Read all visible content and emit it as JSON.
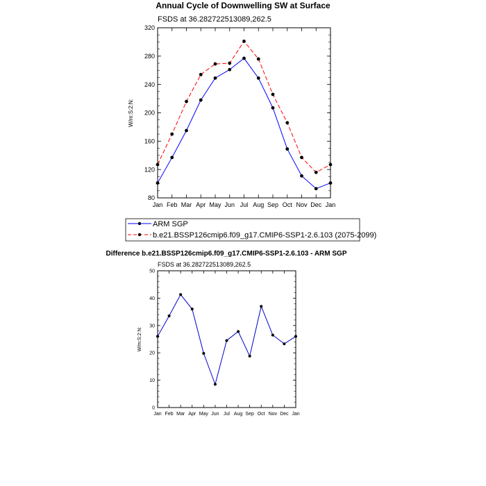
{
  "months": [
    "Jan",
    "Feb",
    "Mar",
    "Apr",
    "May",
    "Jun",
    "Jul",
    "Aug",
    "Sep",
    "Oct",
    "Nov",
    "Dec",
    "Jan"
  ],
  "colors": {
    "obs": "#0000ff",
    "model": "#ff0000",
    "diff": "#0000cc",
    "marker": "#000000"
  },
  "chart_data": [
    {
      "type": "line",
      "title": "Annual Cycle of Downwelling SW at Surface",
      "subtitle": "FSDS at 36.282722513089,262.5",
      "ylabel": "W/m:S:2:N:",
      "ylim": [
        80,
        320
      ],
      "yticks": [
        80,
        120,
        160,
        200,
        240,
        280,
        320
      ],
      "categories": [
        "Jan",
        "Feb",
        "Mar",
        "Apr",
        "May",
        "Jun",
        "Jul",
        "Aug",
        "Sep",
        "Oct",
        "Nov",
        "Dec",
        "Jan"
      ],
      "legend_position": "bottom",
      "series": [
        {
          "name": "ARM SGP",
          "style": "solid",
          "color": "#0000ff",
          "values": [
            101,
            137,
            175,
            218,
            249,
            261,
            277,
            249,
            207,
            149,
            111,
            93,
            101
          ]
        },
        {
          "name": "b.e21.BSSP126cmip6.f09_g17.CMIP6-SSP1-2.6.103 (2075-2099)",
          "style": "dashed",
          "color": "#ff0000",
          "values": [
            127,
            170,
            216,
            254,
            269,
            270,
            301,
            276,
            226,
            186,
            137,
            116,
            127
          ]
        }
      ]
    },
    {
      "type": "line",
      "title": "Difference b.e21.BSSP126cmip6.f09_g17.CMIP6-SSP1-2.6.103 - ARM SGP",
      "subtitle": "FSDS at 36.282722513089,262.5",
      "ylabel": "W/m:S:2:N:",
      "ylim": [
        0,
        50
      ],
      "yticks": [
        0,
        10,
        20,
        30,
        40,
        50
      ],
      "categories": [
        "Jan",
        "Feb",
        "Mar",
        "Apr",
        "May",
        "Jun",
        "Jul",
        "Aug",
        "Sep",
        "Oct",
        "Nov",
        "Dec",
        "Jan"
      ],
      "series": [
        {
          "style": "solid",
          "color": "#0000cc",
          "values": [
            26.0,
            33.5,
            41.3,
            36.0,
            19.8,
            8.5,
            24.5,
            27.8,
            18.8,
            37.0,
            26.5,
            23.3,
            26.0
          ]
        }
      ]
    }
  ]
}
